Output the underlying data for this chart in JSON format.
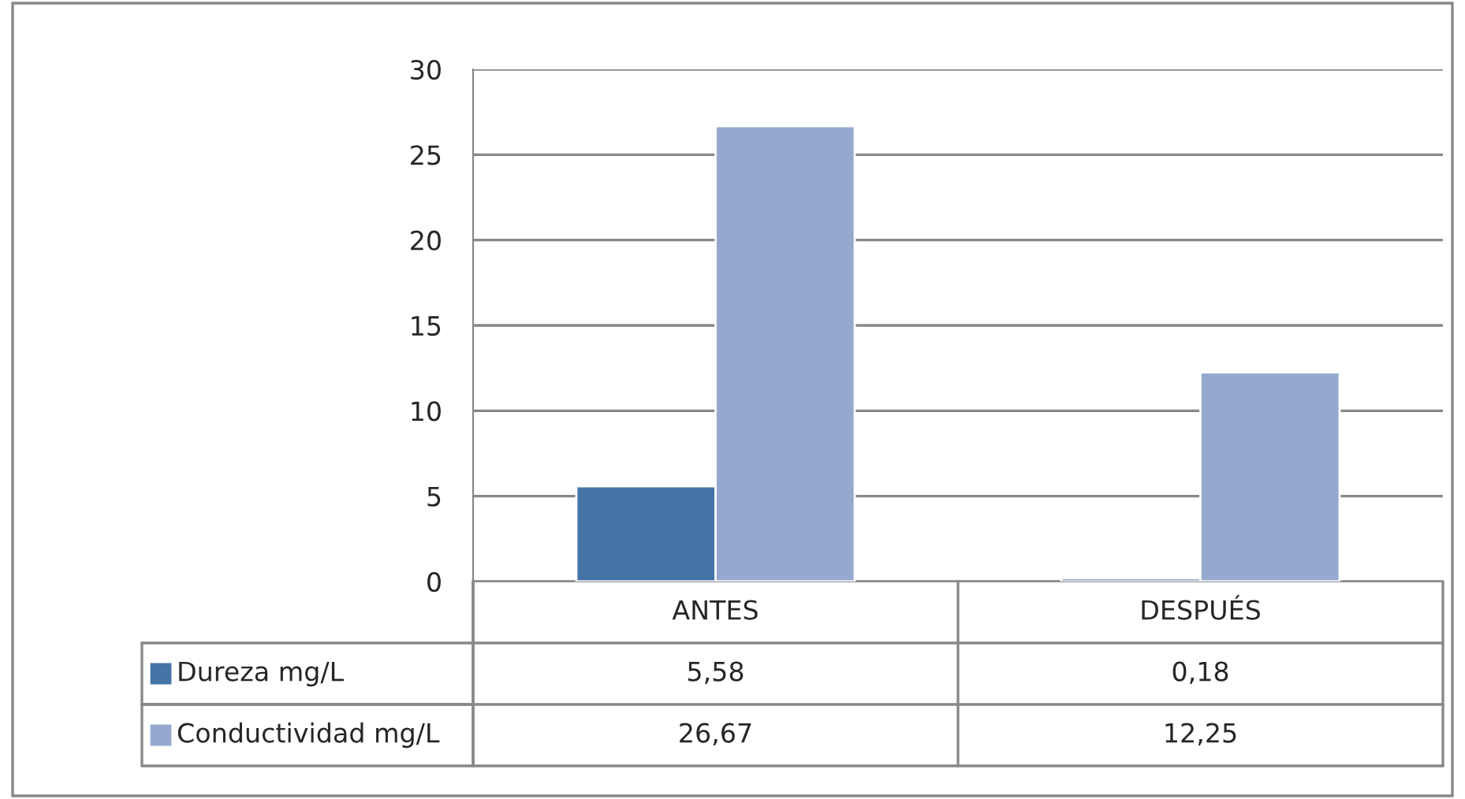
{
  "chart_data": {
    "type": "bar",
    "categories": [
      "ANTES",
      "DESPUÉS"
    ],
    "series": [
      {
        "name": "Dureza mg/L",
        "color": "#4573a7",
        "values": [
          5.58,
          0.18
        ],
        "value_labels": [
          "5,58",
          "0,18"
        ]
      },
      {
        "name": "Conductividad mg/L",
        "color": "#95a9d0",
        "values": [
          26.67,
          12.25
        ],
        "value_labels": [
          "26,67",
          "12,25"
        ]
      }
    ],
    "ylim": [
      0,
      30
    ],
    "yticks": [
      0,
      5,
      10,
      15,
      20,
      25,
      30
    ],
    "grid": "y",
    "legend": "bottom"
  }
}
